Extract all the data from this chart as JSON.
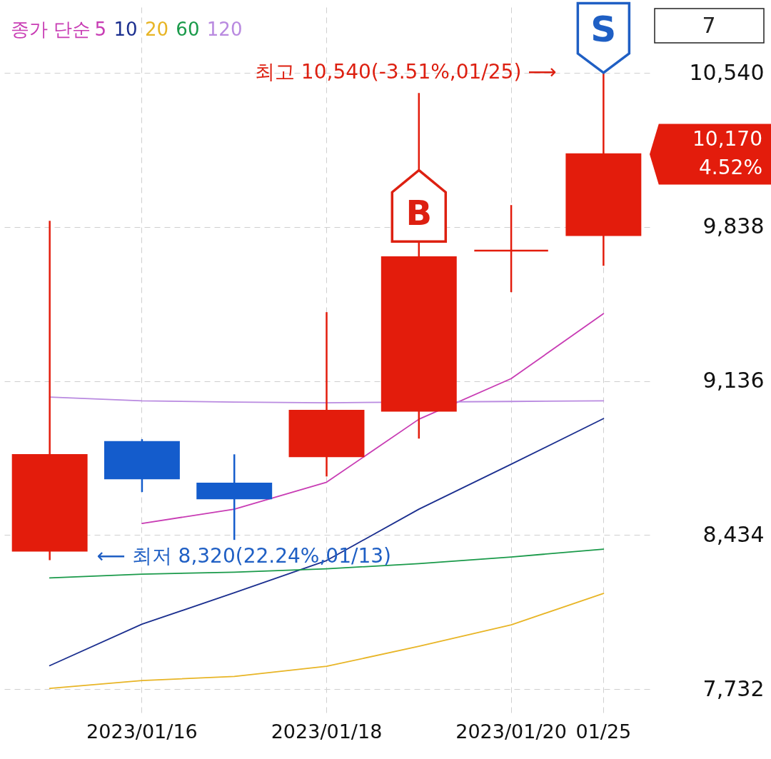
{
  "chart_data": {
    "type": "candlestick",
    "categories": [
      null,
      "2023/01/16",
      null,
      "2023/01/18",
      null,
      "2023/01/20",
      "01/25"
    ],
    "ohlc": [
      [
        8363,
        9866,
        8320,
        8799
      ],
      [
        8858,
        8871,
        8630,
        8692
      ],
      [
        8669,
        8802,
        8412,
        8601
      ],
      [
        8793,
        9450,
        8701,
        9001
      ],
      [
        9001,
        10449,
        8874,
        9700
      ],
      [
        9730,
        9938,
        9541,
        9730
      ],
      [
        9801,
        10540,
        9661,
        10170
      ]
    ],
    "colors": [
      "#e31c0c",
      "#145ccc",
      "#145ccc",
      "#e31c0c",
      "#e31c0c",
      "#e31c0c",
      "#e31c0c"
    ],
    "series": [
      {
        "name": "5",
        "type": "line",
        "color": "#c83cb4",
        "values": [
          null,
          8487,
          8552,
          8675,
          8962,
          9147,
          9443
        ]
      },
      {
        "name": "10",
        "type": "line",
        "color": "#1b2f8f",
        "values": [
          7839,
          8028,
          8171,
          8318,
          8552,
          8757,
          8965
        ]
      },
      {
        "name": "20",
        "type": "line",
        "color": "#e8b526",
        "values": [
          7735,
          7771,
          7790,
          7836,
          7927,
          8025,
          8168
        ]
      },
      {
        "name": "60",
        "type": "line",
        "color": "#1a9a4a",
        "values": [
          8239,
          8256,
          8265,
          8280,
          8304,
          8334,
          8370
        ]
      },
      {
        "name": "120",
        "type": "line",
        "color": "#b98ae0",
        "values": [
          9063,
          9046,
          9040,
          9037,
          null,
          9043,
          9046
        ]
      }
    ],
    "legend_title": "종가 단순",
    "legend": "top left",
    "ylim": [
      7625,
      10840
    ],
    "yticks": [
      {
        "value": 7732,
        "label": "7,732"
      },
      {
        "value": 8434,
        "label": "8,434"
      },
      {
        "value": 9136,
        "label": "9,136"
      },
      {
        "value": 9838,
        "label": "9,838"
      },
      {
        "value": 10540,
        "label": "10,540"
      }
    ],
    "grid": true,
    "annotations": [
      "7",
      "최고 10,540(-3.51%,01/25) ⟶",
      "⟵ 최저 8,320(22.24%,01/13)",
      {
        "text": "B",
        "y": 9700
      },
      {
        "text": "S",
        "x": "01/25",
        "y": 10540
      },
      "10,170\n4.52%"
    ]
  }
}
